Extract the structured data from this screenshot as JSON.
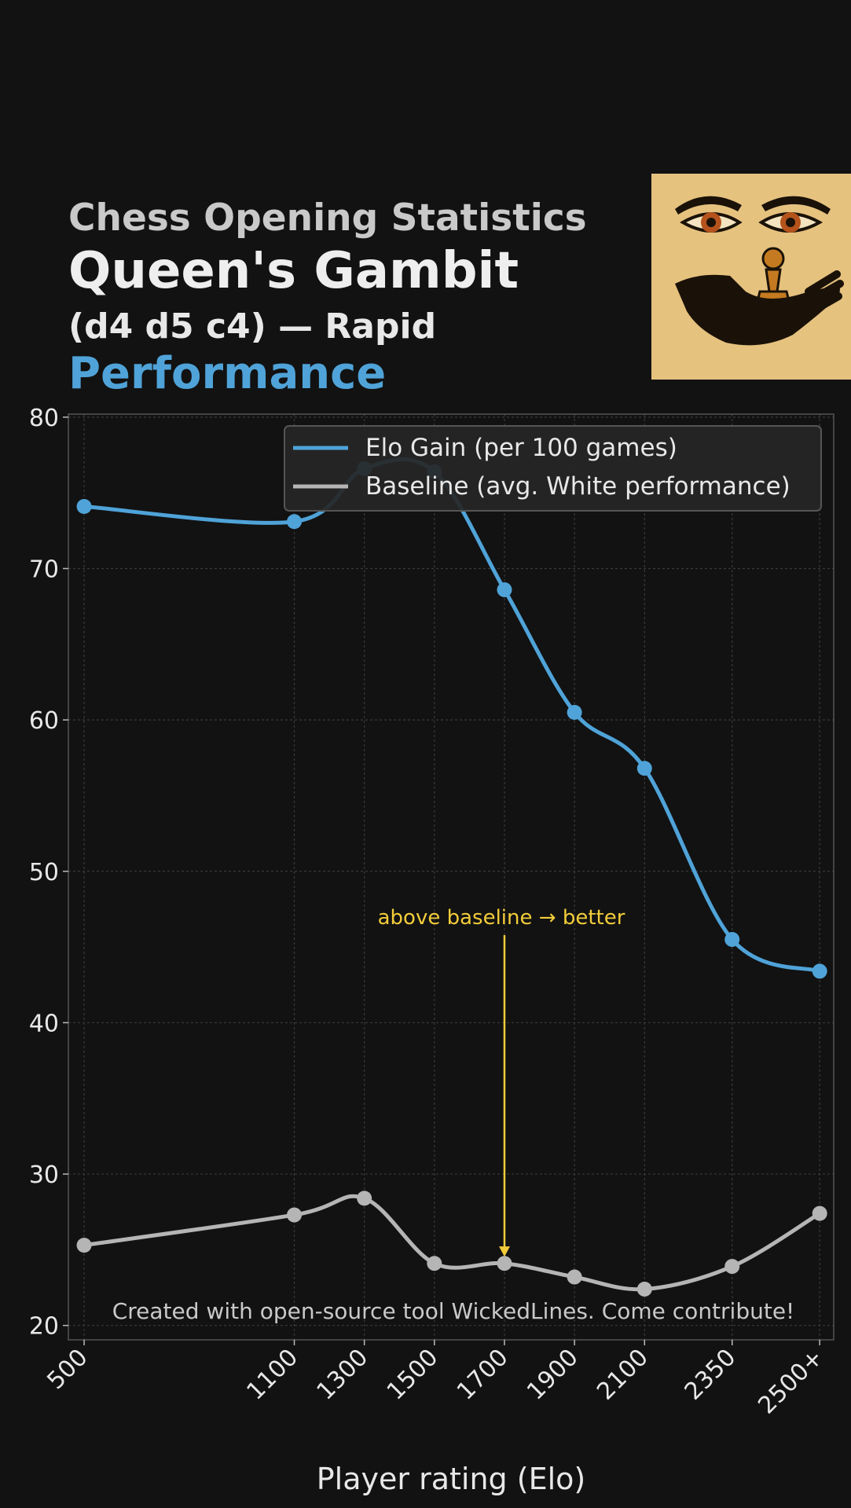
{
  "header": {
    "subtitle": "Chess Opening Statistics",
    "title": "Queen's Gambit",
    "moves": "(d4 d5 c4) — Rapid",
    "metric": "Performance"
  },
  "thumbnail": {
    "icon": "chess-eyes-hand-pawn-illustration"
  },
  "colors": {
    "background": "#121212",
    "gain": "#4fa3d8",
    "baseline": "#b5b5b5",
    "annotation": "#f2cc3a"
  },
  "chart_data": {
    "type": "line",
    "xlabel": "Player rating (Elo)",
    "ylabel": "",
    "ylim": [
      19,
      80
    ],
    "yticks": [
      20,
      30,
      40,
      50,
      60,
      70,
      80
    ],
    "x": [
      500,
      1100,
      1300,
      1500,
      1700,
      1900,
      2100,
      2350,
      2600
    ],
    "categories": [
      "500",
      "1100",
      "1300",
      "1500",
      "1700",
      "1900",
      "2100",
      "2350",
      "2500+"
    ],
    "series": [
      {
        "name": "Elo Gain (per 100 games)",
        "values": [
          74.1,
          73.1,
          76.6,
          76.4,
          68.6,
          60.5,
          56.8,
          45.5,
          43.4
        ]
      },
      {
        "name": "Baseline (avg. White performance)",
        "values": [
          25.3,
          27.3,
          28.4,
          24.1,
          24.1,
          23.2,
          22.4,
          23.9,
          27.4
        ]
      }
    ],
    "grid": true,
    "legend_position": "top-right",
    "annotation": {
      "text": "above baseline → better",
      "x": 1700,
      "y_text": 45.5,
      "y_arrow": 24.6
    },
    "footer": "Created with open-source tool WickedLines. Come contribute!"
  }
}
